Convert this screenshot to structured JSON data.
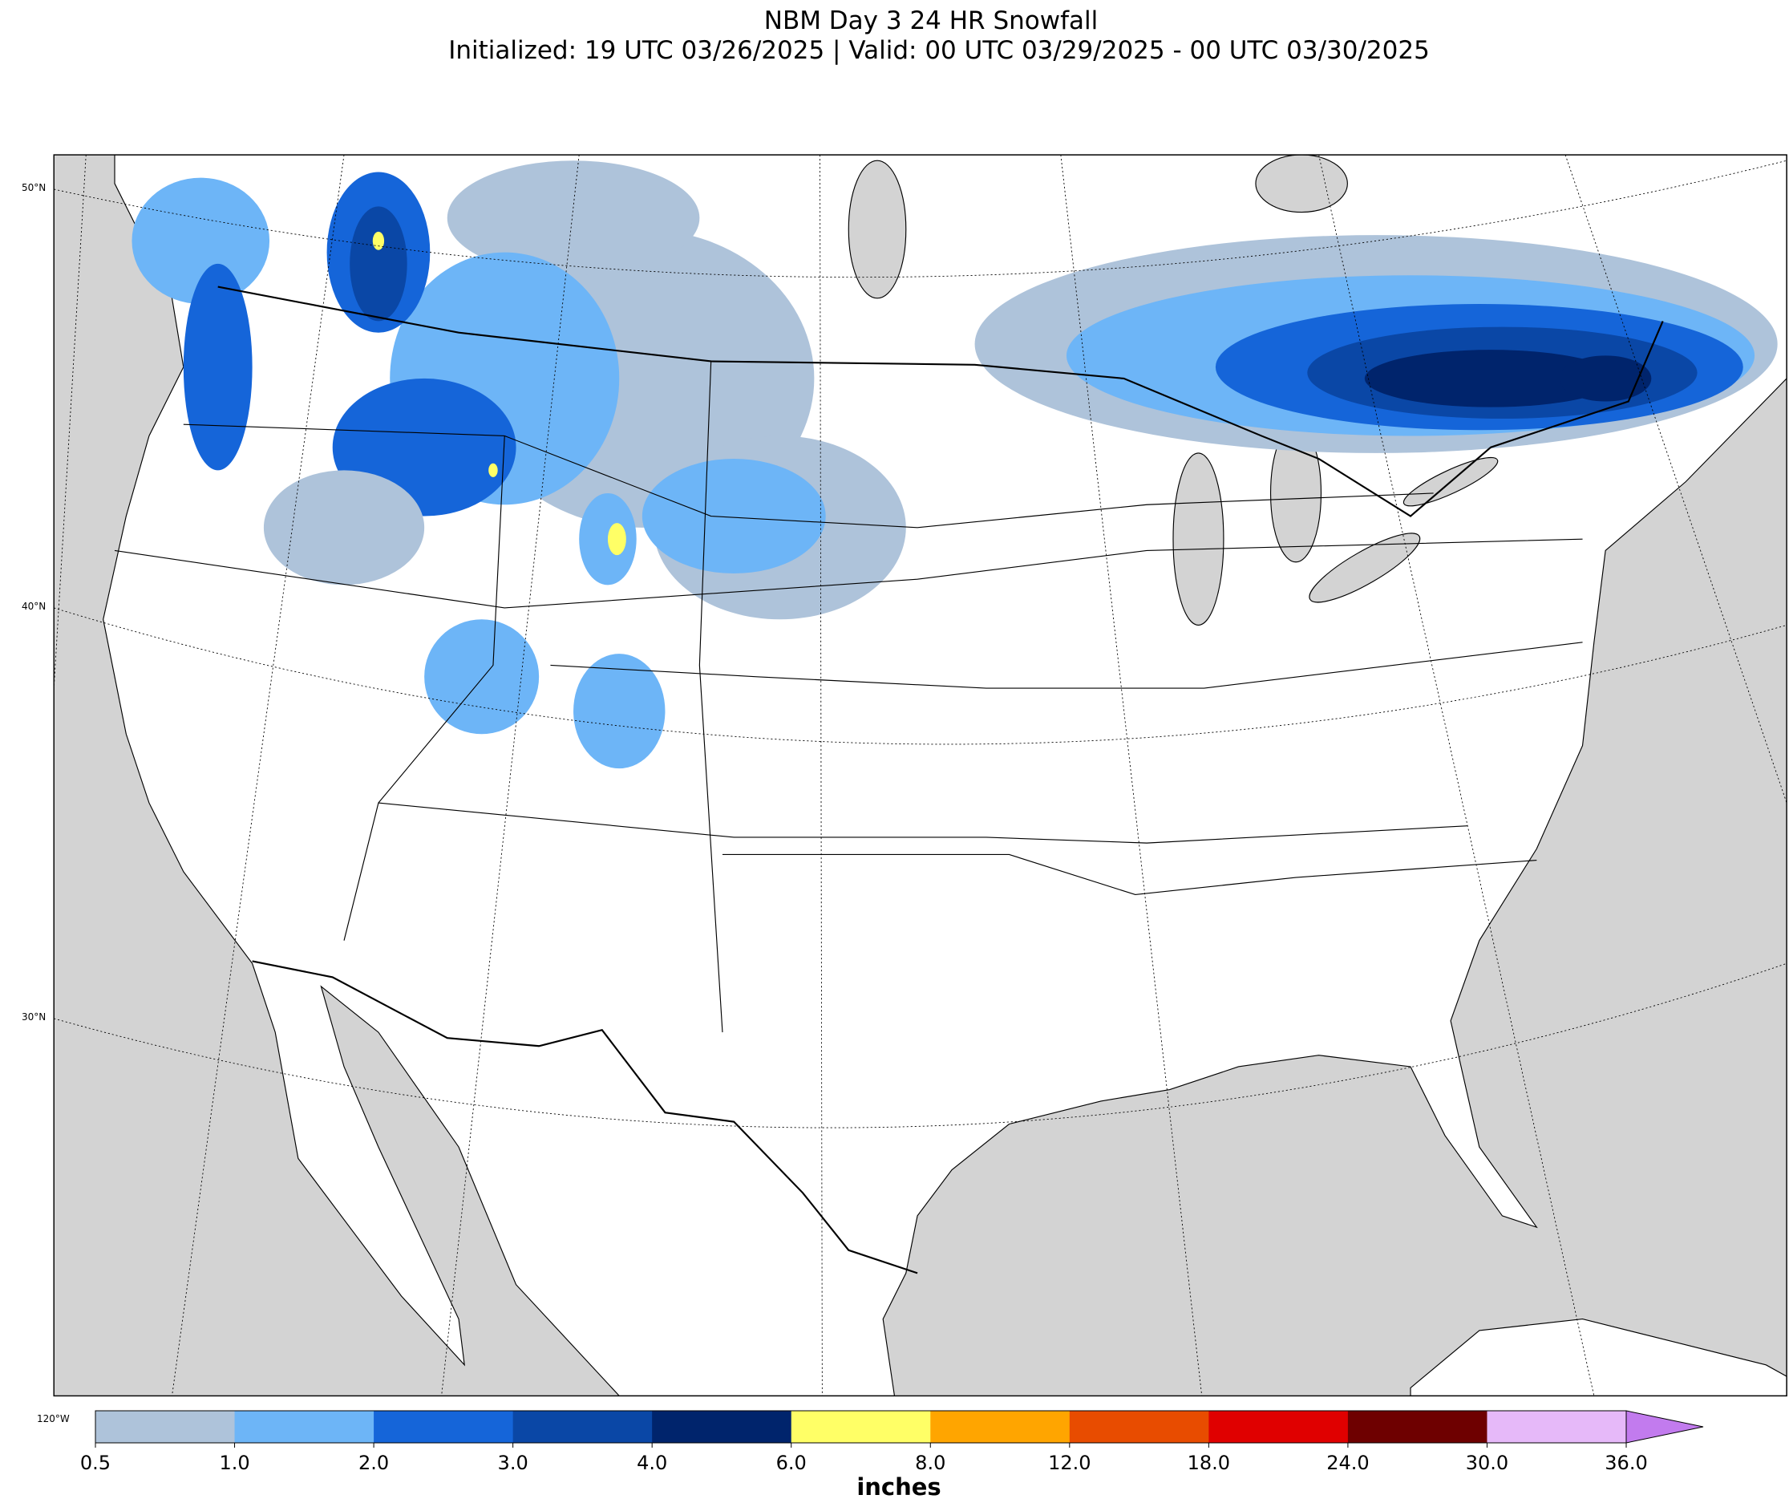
{
  "header": {
    "title": "NBM Day 3 24 HR Snowfall",
    "subtitle": "Initialized: 19 UTC 03/26/2025 | Valid: 00 UTC 03/29/2025 - 00 UTC 03/30/2025"
  },
  "map": {
    "lat_labels": [
      "50°N",
      "40°N",
      "30°N"
    ],
    "lon_label": "120°W"
  },
  "colorbar": {
    "label": "inches",
    "ticks": [
      "0.5",
      "1.0",
      "2.0",
      "3.0",
      "4.0",
      "6.0",
      "8.0",
      "12.0",
      "18.0",
      "24.0",
      "30.0",
      "36.0"
    ],
    "colors": [
      "#aec3da",
      "#6db5f7",
      "#1565d9",
      "#0a47a6",
      "#00246c",
      "#ffff66",
      "#ffa500",
      "#e84c00",
      "#e00000",
      "#6e0000",
      "#e6b9f9"
    ],
    "extend_color": "#c27bee"
  }
}
